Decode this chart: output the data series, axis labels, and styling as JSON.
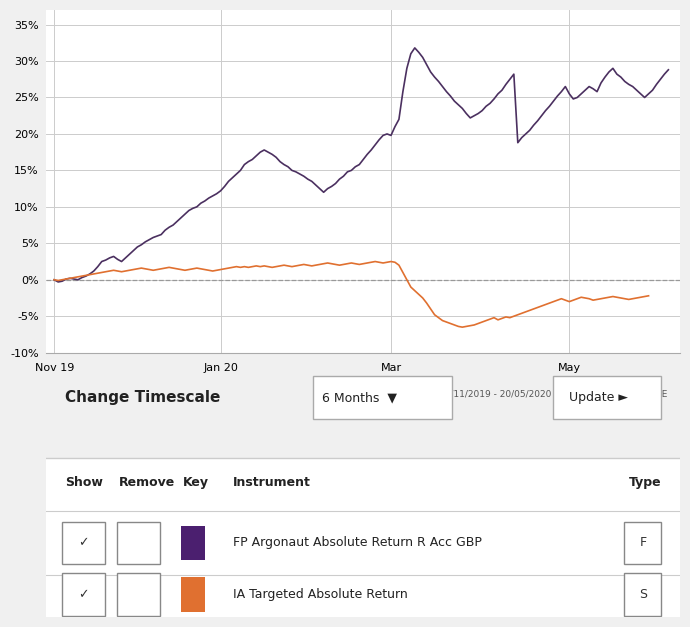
{
  "title": "",
  "date_label": "21/11/2019 - 20/05/2020 Powered by data from FE",
  "argonaut_color": "#4b3060",
  "sector_color": "#e07030",
  "background_chart": "#ffffff",
  "background_ui": "#eeeeee",
  "ylim": [
    -0.1,
    0.37
  ],
  "yticks": [
    -0.1,
    -0.05,
    0.0,
    0.05,
    0.1,
    0.15,
    0.2,
    0.25,
    0.3,
    0.35
  ],
  "xtick_labels": [
    "Nov 19",
    "Jan 20",
    "Mar",
    "May"
  ],
  "xtick_positions": [
    0,
    42,
    85,
    130
  ],
  "grid_color": "#cccccc",
  "argonaut_data": [
    0.0,
    -0.003,
    -0.002,
    0.001,
    0.002,
    0.001,
    0.0,
    0.003,
    0.005,
    0.008,
    0.012,
    0.018,
    0.025,
    0.027,
    0.03,
    0.032,
    0.028,
    0.025,
    0.03,
    0.035,
    0.04,
    0.045,
    0.048,
    0.052,
    0.055,
    0.058,
    0.06,
    0.062,
    0.068,
    0.072,
    0.075,
    0.08,
    0.085,
    0.09,
    0.095,
    0.098,
    0.1,
    0.105,
    0.108,
    0.112,
    0.115,
    0.118,
    0.122,
    0.128,
    0.135,
    0.14,
    0.145,
    0.15,
    0.158,
    0.162,
    0.165,
    0.17,
    0.175,
    0.178,
    0.175,
    0.172,
    0.168,
    0.162,
    0.158,
    0.155,
    0.15,
    0.148,
    0.145,
    0.142,
    0.138,
    0.135,
    0.13,
    0.125,
    0.12,
    0.125,
    0.128,
    0.132,
    0.138,
    0.142,
    0.148,
    0.15,
    0.155,
    0.158,
    0.165,
    0.172,
    0.178,
    0.185,
    0.192,
    0.198,
    0.2,
    0.198,
    0.21,
    0.22,
    0.258,
    0.29,
    0.31,
    0.318,
    0.312,
    0.305,
    0.295,
    0.285,
    0.278,
    0.272,
    0.265,
    0.258,
    0.252,
    0.245,
    0.24,
    0.235,
    0.228,
    0.222,
    0.225,
    0.228,
    0.232,
    0.238,
    0.242,
    0.248,
    0.255,
    0.26,
    0.268,
    0.275,
    0.282,
    0.188,
    0.195,
    0.2,
    0.205,
    0.212,
    0.218,
    0.225,
    0.232,
    0.238,
    0.245,
    0.252,
    0.258,
    0.265,
    0.255,
    0.248,
    0.25,
    0.255,
    0.26,
    0.265,
    0.262,
    0.258,
    0.27,
    0.278,
    0.285,
    0.29,
    0.282,
    0.278,
    0.272,
    0.268,
    0.265,
    0.26,
    0.255,
    0.25,
    0.255,
    0.26,
    0.268,
    0.275,
    0.282,
    0.288
  ],
  "sector_data": [
    0.0,
    -0.001,
    0.0,
    0.001,
    0.002,
    0.003,
    0.004,
    0.005,
    0.006,
    0.007,
    0.008,
    0.009,
    0.01,
    0.011,
    0.012,
    0.013,
    0.012,
    0.011,
    0.012,
    0.013,
    0.014,
    0.015,
    0.016,
    0.015,
    0.014,
    0.013,
    0.014,
    0.015,
    0.016,
    0.017,
    0.016,
    0.015,
    0.014,
    0.013,
    0.014,
    0.015,
    0.016,
    0.015,
    0.014,
    0.013,
    0.012,
    0.013,
    0.014,
    0.015,
    0.016,
    0.017,
    0.018,
    0.017,
    0.018,
    0.017,
    0.018,
    0.019,
    0.018,
    0.019,
    0.018,
    0.017,
    0.018,
    0.019,
    0.02,
    0.019,
    0.018,
    0.019,
    0.02,
    0.021,
    0.02,
    0.019,
    0.02,
    0.021,
    0.022,
    0.023,
    0.022,
    0.021,
    0.02,
    0.021,
    0.022,
    0.023,
    0.022,
    0.021,
    0.022,
    0.023,
    0.024,
    0.025,
    0.024,
    0.023,
    0.024,
    0.025,
    0.024,
    0.02,
    0.01,
    0.0,
    -0.01,
    -0.015,
    -0.02,
    -0.025,
    -0.032,
    -0.04,
    -0.048,
    -0.052,
    -0.056,
    -0.058,
    -0.06,
    -0.062,
    -0.064,
    -0.065,
    -0.064,
    -0.063,
    -0.062,
    -0.06,
    -0.058,
    -0.056,
    -0.054,
    -0.052,
    -0.055,
    -0.053,
    -0.051,
    -0.052,
    -0.05,
    -0.048,
    -0.046,
    -0.044,
    -0.042,
    -0.04,
    -0.038,
    -0.036,
    -0.034,
    -0.032,
    -0.03,
    -0.028,
    -0.026,
    -0.028,
    -0.03,
    -0.028,
    -0.026,
    -0.024,
    -0.025,
    -0.026,
    -0.028,
    -0.027,
    -0.026,
    -0.025,
    -0.024,
    -0.023,
    -0.024,
    -0.025,
    -0.026,
    -0.027,
    -0.026,
    -0.025,
    -0.024,
    -0.023,
    -0.022
  ],
  "instrument1_label": "FP Argonaut Absolute Return R Acc GBP",
  "instrument1_key_color": "#4b1f6f",
  "instrument1_type": "F",
  "instrument2_label": "IA Targeted Absolute Return",
  "instrument2_key_color": "#e07030",
  "instrument2_type": "S",
  "timescale_label": "6 Months",
  "change_timescale_label": "Change Timescale",
  "update_label": "Update ►"
}
